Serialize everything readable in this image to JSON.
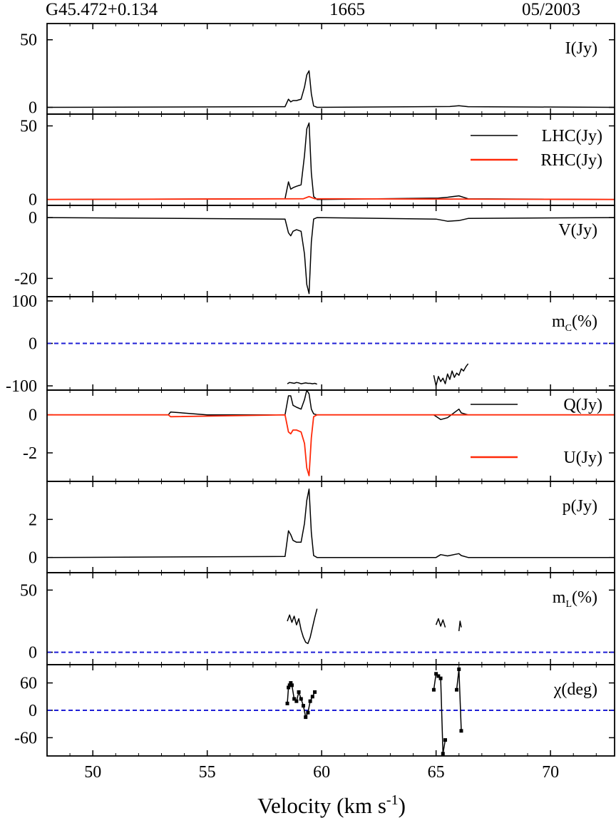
{
  "header": {
    "source": "G45.472+0.134",
    "frequency": "1665",
    "date": "05/2003"
  },
  "xaxis": {
    "label_main": "Velocity (km s",
    "label_sup": "-1",
    "label_close": ")",
    "ticks": [
      "50",
      "55",
      "60",
      "65",
      "70"
    ]
  },
  "colors": {
    "black": "#000000",
    "red": "#ff2a0a",
    "blue": "#1f1fd6"
  },
  "chart_data": [
    {
      "type": "line",
      "panel": "I",
      "ylim": [
        -5,
        62
      ],
      "yticks": [
        "0",
        "50"
      ],
      "ytick_values": [
        0,
        50
      ],
      "label": "I(Jy)",
      "series": [
        {
          "color": "black",
          "x": [
            48.0,
            58.4,
            58.55,
            58.65,
            58.75,
            58.9,
            59.1,
            59.25,
            59.35,
            59.45,
            59.55,
            59.65,
            59.8,
            65.6,
            66.0,
            66.4,
            72.8
          ],
          "y": [
            0,
            0.5,
            6,
            4,
            5,
            5,
            6,
            15,
            24,
            27,
            10,
            1,
            0,
            0.6,
            1.2,
            0.5,
            0
          ]
        }
      ]
    },
    {
      "type": "line",
      "panel": "LHC_RHC",
      "ylim": [
        -4,
        58
      ],
      "yticks": [
        "0",
        "50"
      ],
      "ytick_values": [
        0,
        50
      ],
      "label": "",
      "legend": [
        {
          "name": "LHC(Jy)",
          "color": "black"
        },
        {
          "name": "RHC(Jy)",
          "color": "red"
        }
      ],
      "series": [
        {
          "name": "LHC(Jy)",
          "color": "black",
          "x": [
            48.0,
            58.4,
            58.55,
            58.65,
            58.75,
            58.9,
            59.1,
            59.25,
            59.35,
            59.45,
            59.55,
            59.65,
            59.8,
            65.1,
            65.5,
            66.0,
            66.4,
            72.8
          ],
          "y": [
            0,
            0.5,
            12,
            7,
            8,
            9,
            10,
            30,
            48,
            52,
            18,
            2,
            0,
            1,
            1.5,
            2.5,
            0.5,
            0
          ]
        },
        {
          "name": "RHC(Jy)",
          "color": "red",
          "x": [
            48.0,
            59.2,
            59.45,
            59.7,
            72.8
          ],
          "y": [
            0,
            0.5,
            2,
            0.5,
            0
          ]
        }
      ]
    },
    {
      "type": "line",
      "panel": "V",
      "ylim": [
        -26,
        4
      ],
      "yticks": [
        "0",
        "-20"
      ],
      "ytick_values": [
        0,
        -20
      ],
      "label": "V(Jy)",
      "series": [
        {
          "color": "black",
          "x": [
            48.0,
            58.4,
            58.55,
            58.65,
            58.75,
            58.9,
            59.1,
            59.25,
            59.35,
            59.45,
            59.55,
            59.65,
            59.8,
            65.0,
            65.5,
            66.0,
            66.4,
            72.8
          ],
          "y": [
            0,
            -0.5,
            -5,
            -6,
            -4.5,
            -4,
            -4.5,
            -12,
            -22,
            -25,
            -8,
            -0.5,
            0,
            -0.5,
            -1.2,
            -1,
            -0.3,
            0
          ]
        }
      ]
    },
    {
      "type": "line",
      "panel": "mc",
      "ylim": [
        -110,
        110
      ],
      "yticks": [
        "100",
        "0",
        "-100"
      ],
      "ytick_values": [
        100,
        0,
        -100
      ],
      "label_main": "m",
      "label_sub": "C",
      "label_tail": "(%)",
      "reference_line": {
        "y": 0,
        "color": "blue",
        "style": "dashed"
      },
      "series": [
        {
          "color": "black",
          "x": [
            58.5,
            58.6,
            58.7,
            58.8,
            58.9,
            59.0,
            59.1,
            59.2,
            59.3,
            59.4,
            59.5,
            59.6,
            59.7,
            59.8
          ],
          "y": [
            -95,
            -92,
            -93,
            -94,
            -92,
            -93,
            -95,
            -94,
            -93,
            -94,
            -94,
            -95,
            -94,
            -96
          ]
        },
        {
          "color": "black",
          "x": [
            64.9,
            65.0,
            65.1,
            65.2,
            65.3,
            65.4,
            65.5,
            65.6,
            65.7,
            65.8,
            65.9,
            66.0,
            66.1,
            66.2,
            66.3,
            66.4
          ],
          "y": [
            -75,
            -100,
            -78,
            -90,
            -82,
            -95,
            -72,
            -85,
            -65,
            -80,
            -70,
            -75,
            -60,
            -65,
            -55,
            -48
          ]
        }
      ]
    },
    {
      "type": "line",
      "panel": "Q_U",
      "ylim": [
        -3.5,
        1.3
      ],
      "yticks": [
        "0",
        "-2"
      ],
      "ytick_values": [
        0,
        -2
      ],
      "label": "",
      "legend": [
        {
          "name": "Q(Jy)",
          "color": "black"
        },
        {
          "name": "U(Jy)",
          "color": "red"
        }
      ],
      "series": [
        {
          "name": "Q(Jy)",
          "color": "black",
          "x": [
            48.0,
            53.3,
            53.4,
            55.0,
            58.4,
            58.55,
            58.65,
            58.75,
            58.9,
            59.1,
            59.25,
            59.35,
            59.45,
            59.55,
            59.65,
            59.8,
            64.9,
            65.2,
            65.5,
            66.0,
            66.1,
            66.4,
            72.8
          ],
          "y": [
            0,
            0,
            0.15,
            0,
            0,
            1,
            1,
            0.5,
            0.4,
            0.3,
            0.8,
            1.3,
            1.1,
            0.3,
            0.05,
            0,
            0,
            -0.25,
            -0.15,
            0.3,
            0.1,
            0,
            0
          ]
        },
        {
          "name": "U(Jy)",
          "color": "red",
          "x": [
            48.0,
            53.3,
            53.4,
            58.4,
            58.55,
            58.65,
            58.75,
            58.9,
            59.1,
            59.25,
            59.35,
            59.45,
            59.55,
            59.65,
            59.8,
            72.8
          ],
          "y": [
            0,
            0,
            -0.1,
            0,
            -0.9,
            -1.0,
            -0.8,
            -0.8,
            -0.9,
            -1.5,
            -2.8,
            -3.2,
            -1.2,
            -0.1,
            0,
            0
          ]
        }
      ]
    },
    {
      "type": "line",
      "panel": "p",
      "ylim": [
        -0.8,
        4.0
      ],
      "yticks": [
        "0",
        "2"
      ],
      "ytick_values": [
        0,
        2
      ],
      "label": "p(Jy)",
      "series": [
        {
          "color": "black",
          "x": [
            48.0,
            58.4,
            58.55,
            58.65,
            58.75,
            58.9,
            59.1,
            59.25,
            59.35,
            59.45,
            59.55,
            59.65,
            59.8,
            65.0,
            65.2,
            65.5,
            66.0,
            66.1,
            66.4,
            72.8
          ],
          "y": [
            0,
            0.05,
            1.4,
            1.2,
            0.9,
            0.8,
            0.8,
            1.8,
            3.0,
            3.6,
            1.3,
            0.1,
            0,
            0,
            0.15,
            0.08,
            0.2,
            0.1,
            0,
            0
          ]
        }
      ]
    },
    {
      "type": "line",
      "panel": "mL",
      "ylim": [
        -10,
        64
      ],
      "yticks": [
        "50",
        "0"
      ],
      "ytick_values": [
        50,
        0
      ],
      "label_main": "m",
      "label_sub": "L",
      "label_tail": "(%)",
      "reference_line": {
        "y": 0,
        "color": "blue",
        "style": "dashed"
      },
      "series": [
        {
          "color": "black",
          "x": [
            58.5,
            58.6,
            58.7,
            58.8,
            58.9,
            59.0,
            59.1,
            59.2,
            59.3,
            59.4,
            59.5,
            59.6,
            59.7,
            59.8
          ],
          "y": [
            25,
            30,
            24,
            29,
            22,
            27,
            18,
            12,
            8,
            7,
            12,
            20,
            28,
            35
          ]
        },
        {
          "color": "black",
          "x": [
            65.0,
            65.1,
            65.2,
            65.3,
            65.4
          ],
          "y": [
            22,
            27,
            21,
            26,
            20
          ]
        },
        {
          "color": "black",
          "x": [
            66.0,
            66.05,
            66.1
          ],
          "y": [
            17,
            25,
            20
          ]
        }
      ]
    },
    {
      "type": "scatter",
      "panel": "chi",
      "ylim": [
        -100,
        100
      ],
      "yticks": [
        "60",
        "0",
        "-60"
      ],
      "ytick_values": [
        60,
        0,
        -60
      ],
      "label_main": "χ(deg)",
      "reference_line": {
        "y": 0,
        "color": "blue",
        "style": "dashed"
      },
      "series": [
        {
          "color": "black",
          "x": [
            58.5,
            58.55,
            58.6,
            58.65,
            58.7,
            58.8,
            58.9,
            59.0,
            59.1,
            59.2,
            59.3,
            59.4,
            59.5,
            59.6,
            59.7
          ],
          "y": [
            15,
            50,
            55,
            60,
            55,
            25,
            20,
            40,
            25,
            10,
            -15,
            -5,
            20,
            30,
            40
          ]
        },
        {
          "color": "black",
          "x": [
            64.9,
            65.0,
            65.1,
            65.2,
            65.3,
            65.4
          ],
          "y": [
            45,
            80,
            75,
            70,
            -95,
            -65
          ]
        },
        {
          "color": "black",
          "x": [
            65.9,
            66.0,
            66.1
          ],
          "y": [
            45,
            90,
            -45
          ]
        }
      ]
    }
  ]
}
